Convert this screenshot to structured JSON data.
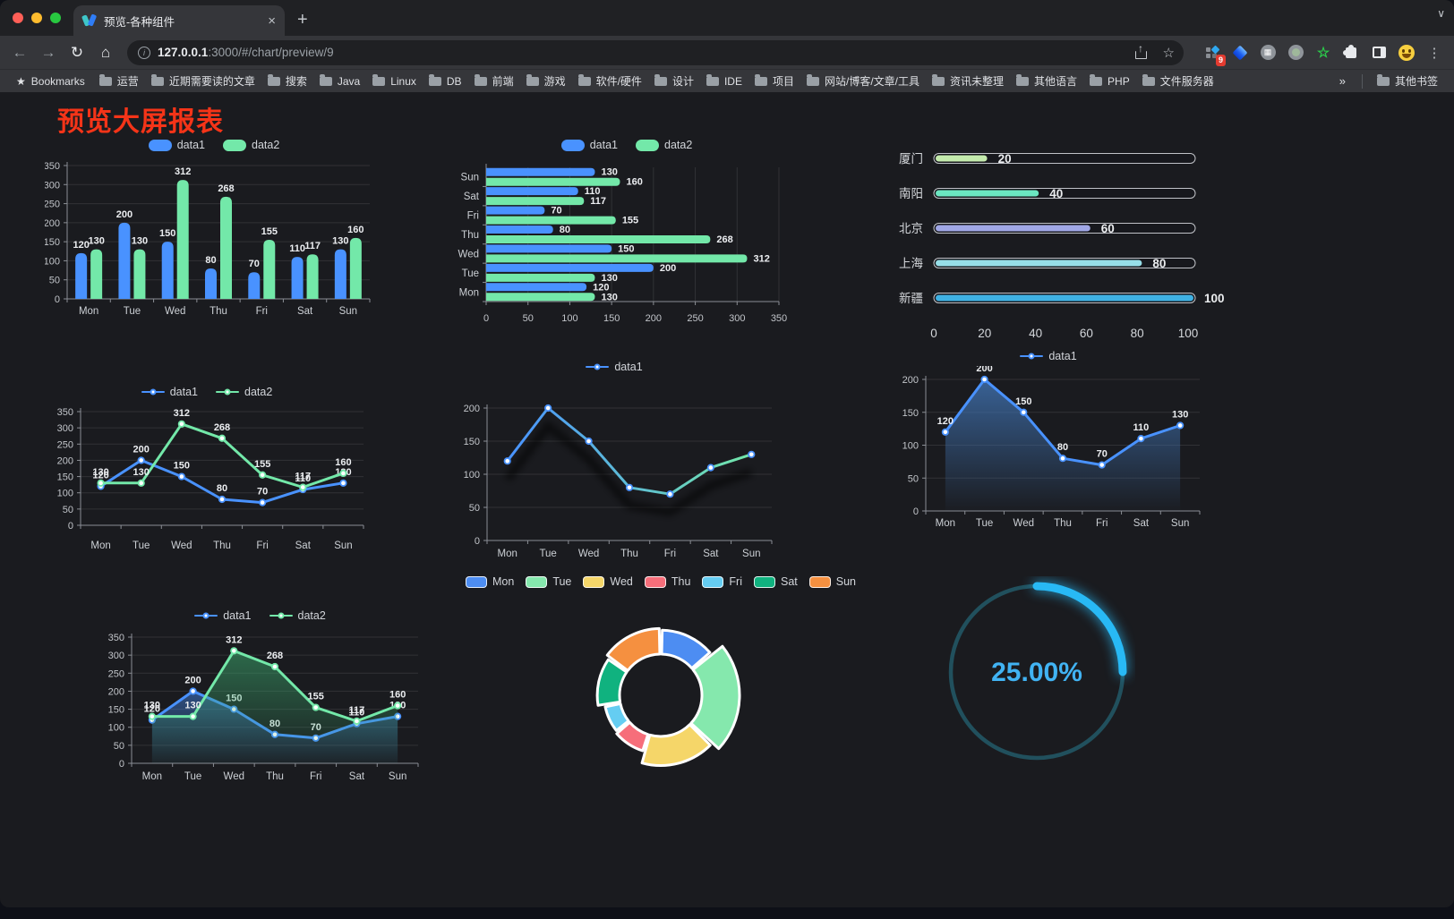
{
  "browser": {
    "tab": {
      "title": "预览-各种组件",
      "close_glyph": "×"
    },
    "new_tab_glyph": "+",
    "tabstrip_chevron_glyph": "∨",
    "toolbar": {
      "back_glyph": "←",
      "forward_glyph": "→",
      "reload_glyph": "↻",
      "home_glyph": "⌂",
      "info_glyph": "i",
      "url_host": "127.0.0.1",
      "url_rest": ":3000/#/chart/preview/9",
      "bookmark_star_glyph": "☆",
      "extension_badge": "9",
      "green_star_glyph": "☆",
      "wheel_glyph": "▦",
      "menu_glyph": "⋮"
    },
    "bookmarks_bar": {
      "star_glyph": "★",
      "root_label": "Bookmarks",
      "folders": [
        "运营",
        "近期需要读的文章",
        "搜索",
        "Java",
        "Linux",
        "DB",
        "前端",
        "游戏",
        "软件/硬件",
        "设计",
        "IDE",
        "项目",
        "网站/博客/文章/工具",
        "资讯未整理",
        "其他语言",
        "PHP",
        "文件服务器"
      ],
      "overflow_glyph": "»",
      "other_label": "其他书签"
    }
  },
  "page": {
    "title": "预览大屏报表"
  },
  "chart_data": [
    {
      "id": "c1",
      "type": "bar",
      "categories": [
        "Mon",
        "Tue",
        "Wed",
        "Thu",
        "Fri",
        "Sat",
        "Sun"
      ],
      "series": [
        {
          "name": "data1",
          "color": "#4992ff",
          "values": [
            120,
            200,
            150,
            80,
            70,
            110,
            130
          ]
        },
        {
          "name": "data2",
          "color": "#73e8a9",
          "values": [
            130,
            130,
            312,
            268,
            155,
            117,
            160
          ]
        }
      ],
      "ylim": [
        0,
        350
      ],
      "ytick": 50,
      "value_labels": true,
      "legend": "top",
      "grid": true
    },
    {
      "id": "c2",
      "type": "hbar",
      "categories": [
        "Mon",
        "Tue",
        "Wed",
        "Thu",
        "Fri",
        "Sat",
        "Sun"
      ],
      "series": [
        {
          "name": "data1",
          "color": "#4992ff",
          "values": [
            120,
            200,
            150,
            80,
            70,
            110,
            130
          ]
        },
        {
          "name": "data2",
          "color": "#73e8a9",
          "values": [
            130,
            130,
            312,
            268,
            155,
            117,
            160
          ]
        }
      ],
      "xlim": [
        0,
        350
      ],
      "xtick": 50,
      "value_labels": true,
      "legend": "top",
      "grid": true
    },
    {
      "id": "c3",
      "type": "progress",
      "xlim": [
        0,
        100
      ],
      "xticks": [
        0,
        20,
        40,
        60,
        80,
        100
      ],
      "items": [
        {
          "label": "厦门",
          "value": 20,
          "color": "#c4ebad"
        },
        {
          "label": "南阳",
          "value": 40,
          "color": "#6be6c1"
        },
        {
          "label": "北京",
          "value": 60,
          "color": "#a0a7e6"
        },
        {
          "label": "上海",
          "value": 80,
          "color": "#96dee8"
        },
        {
          "label": "新疆",
          "value": 100,
          "color": "#3fb1e3"
        }
      ]
    },
    {
      "id": "c4",
      "type": "line",
      "categories": [
        "Mon",
        "Tue",
        "Wed",
        "Thu",
        "Fri",
        "Sat",
        "Sun"
      ],
      "series": [
        {
          "name": "data1",
          "color": "#4992ff",
          "values": [
            120,
            200,
            150,
            80,
            70,
            110,
            130
          ]
        },
        {
          "name": "data2",
          "color": "#73e8a9",
          "values": [
            130,
            130,
            312,
            268,
            155,
            117,
            160
          ]
        }
      ],
      "ylim": [
        0,
        350
      ],
      "ytick": 50,
      "value_labels": true,
      "legend": "top",
      "grid": true
    },
    {
      "id": "c5",
      "type": "line",
      "categories": [
        "Mon",
        "Tue",
        "Wed",
        "Thu",
        "Fri",
        "Sat",
        "Sun"
      ],
      "series": [
        {
          "name": "data1",
          "color": "#4992ff",
          "gradient_to": "#73e8a9",
          "shadow": true,
          "values": [
            120,
            200,
            150,
            80,
            70,
            110,
            130
          ]
        }
      ],
      "ylim": [
        0,
        200
      ],
      "ytick": 50,
      "value_labels": false,
      "legend": "top",
      "grid": true
    },
    {
      "id": "c6",
      "type": "line",
      "categories": [
        "Mon",
        "Tue",
        "Wed",
        "Thu",
        "Fri",
        "Sat",
        "Sun"
      ],
      "series": [
        {
          "name": "data1",
          "color": "#4992ff",
          "area_from": "rgba(62,110,170,0.85)",
          "area_to": "rgba(62,110,170,0.02)",
          "values": [
            120,
            200,
            150,
            80,
            70,
            110,
            130
          ]
        }
      ],
      "ylim": [
        0,
        200
      ],
      "ytick": 50,
      "value_labels": true,
      "legend": "top",
      "grid": true
    },
    {
      "id": "c7",
      "type": "line",
      "categories": [
        "Mon",
        "Tue",
        "Wed",
        "Thu",
        "Fri",
        "Sat",
        "Sun"
      ],
      "series": [
        {
          "name": "data1",
          "color": "#4992ff",
          "area_from": "rgba(73,146,255,0.45)",
          "area_to": "rgba(73,146,255,0.03)",
          "values": [
            120,
            200,
            150,
            80,
            70,
            110,
            130
          ]
        },
        {
          "name": "data2",
          "color": "#73e8a9",
          "area_from": "rgba(60,170,110,0.55)",
          "area_to": "rgba(60,170,110,0.03)",
          "values": [
            130,
            130,
            312,
            268,
            155,
            117,
            160
          ]
        }
      ],
      "ylim": [
        0,
        350
      ],
      "ytick": 50,
      "value_labels": true,
      "legend": "top",
      "grid": true
    },
    {
      "id": "c8",
      "type": "donut",
      "legend": "top",
      "rose": true,
      "items": [
        {
          "label": "Mon",
          "value": 120,
          "color": "#4d8df2"
        },
        {
          "label": "Tue",
          "value": 200,
          "color": "#85e8ad"
        },
        {
          "label": "Wed",
          "value": 150,
          "color": "#f5d669"
        },
        {
          "label": "Thu",
          "value": 80,
          "color": "#f66e7a"
        },
        {
          "label": "Fri",
          "value": 70,
          "color": "#65cdf2"
        },
        {
          "label": "Sat",
          "value": 110,
          "color": "#10b27f"
        },
        {
          "label": "Sun",
          "value": 130,
          "color": "#f59040"
        }
      ]
    },
    {
      "id": "c9",
      "type": "gauge",
      "label": "25.00%",
      "percent": 25,
      "arc_color": "#28b9f5",
      "track_color": "#21505d",
      "text_color": "#41b3f3"
    }
  ]
}
